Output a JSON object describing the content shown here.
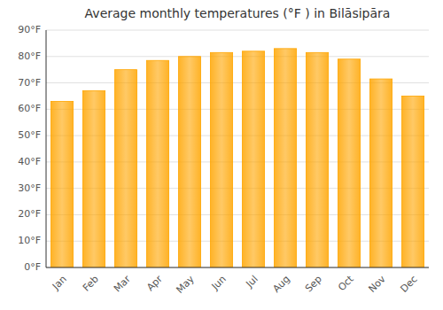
{
  "chart_data": {
    "type": "bar",
    "title": "Average monthly temperatures (°F ) in Bilāsipāra",
    "categories": [
      "Jan",
      "Feb",
      "Mar",
      "Apr",
      "May",
      "Jun",
      "Jul",
      "Aug",
      "Sep",
      "Oct",
      "Nov",
      "Dec"
    ],
    "values": [
      63,
      67,
      75,
      78.5,
      80,
      81.5,
      82,
      83,
      81.5,
      79,
      71.5,
      65
    ],
    "color": "#FFA500",
    "ylim": [
      0,
      90
    ],
    "yticks": [
      {
        "value": 0,
        "label": "0°F"
      },
      {
        "value": 10,
        "label": "10°F"
      },
      {
        "value": 20,
        "label": "20°F"
      },
      {
        "value": 30,
        "label": "30°F"
      },
      {
        "value": 40,
        "label": "40°F"
      },
      {
        "value": 50,
        "label": "50°F"
      },
      {
        "value": 60,
        "label": "60°F"
      },
      {
        "value": 70,
        "label": "70°F"
      },
      {
        "value": 80,
        "label": "80°F"
      },
      {
        "value": 90,
        "label": "90°F"
      }
    ],
    "grid": true
  }
}
